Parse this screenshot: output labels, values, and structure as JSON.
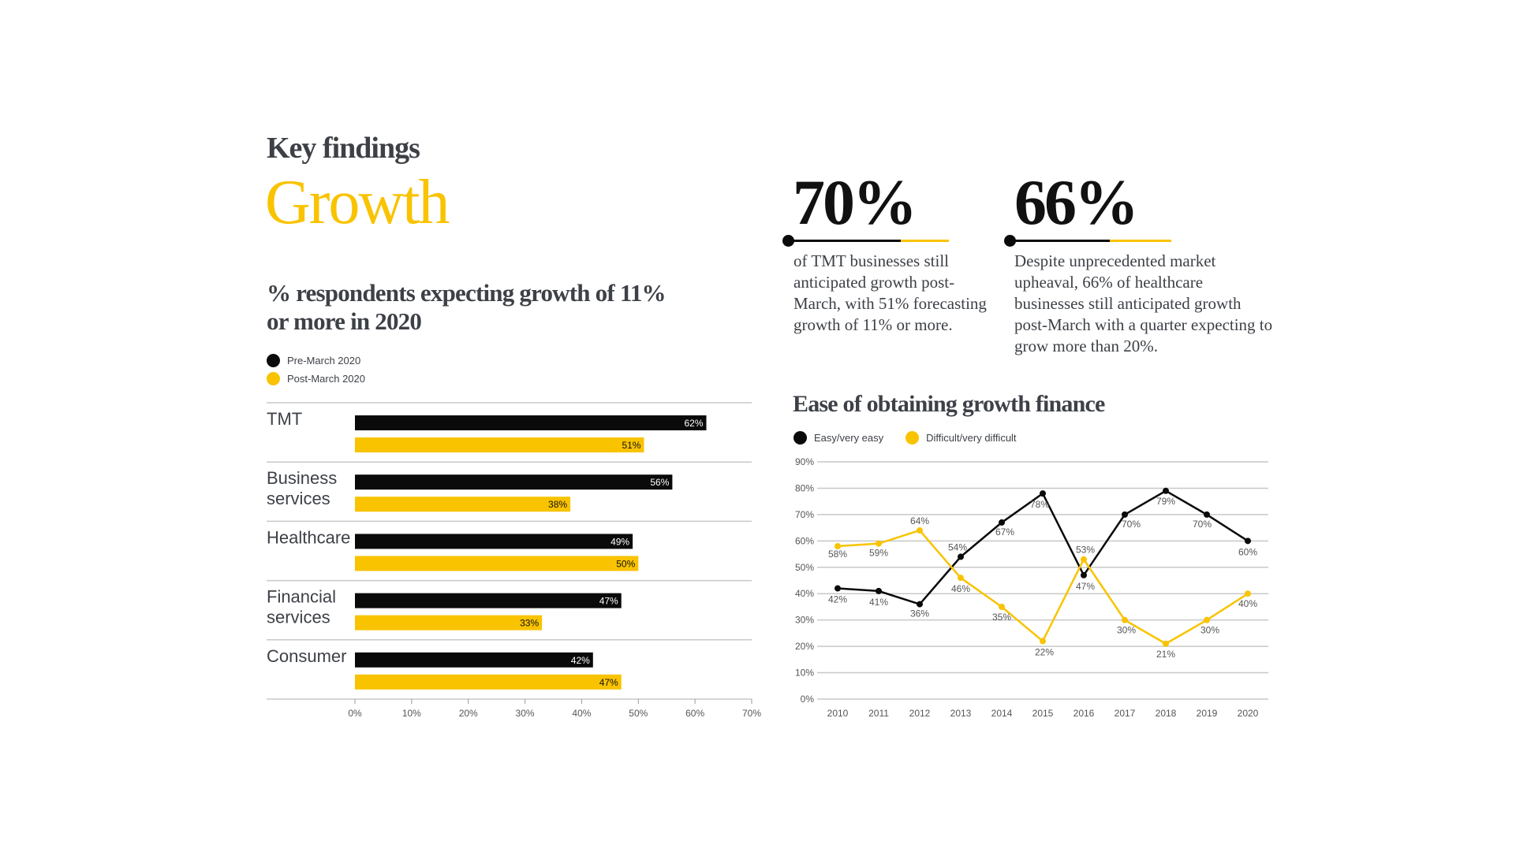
{
  "header": {
    "kicker": "Key findings",
    "headline": "Growth"
  },
  "colors": {
    "black": "#0a0a0a",
    "yellow": "#f9c300",
    "text": "#3d4147",
    "grid": "#c8c8c8"
  },
  "stats": [
    {
      "value": "70%",
      "text": "of TMT businesses still anticipated growth post-March, with 51% forecasting growth of 11% or more."
    },
    {
      "value": "66%",
      "text": "Despite unprecedented market upheaval, 66% of healthcare businesses still anticipated growth post-March with a quarter expecting to grow more than 20%."
    }
  ],
  "chart_data": [
    {
      "type": "bar",
      "orientation": "horizontal",
      "title": "% respondents expecting growth of 11% or more in 2020",
      "categories": [
        [
          "TMT"
        ],
        [
          "Business",
          "services"
        ],
        [
          "Healthcare"
        ],
        [
          "Financial",
          "services"
        ],
        [
          "Consumer"
        ]
      ],
      "series": [
        {
          "name": "Pre-March 2020",
          "color": "#0a0a0a",
          "values": [
            62,
            56,
            49,
            47,
            42
          ],
          "labels": [
            "62%",
            "56%",
            "49%",
            "47%",
            "42%"
          ]
        },
        {
          "name": "Post-March 2020",
          "color": "#f9c300",
          "values": [
            51,
            38,
            50,
            33,
            47
          ],
          "labels": [
            "51%",
            "38%",
            "50%",
            "33%",
            "47%"
          ]
        }
      ],
      "xlim": [
        0,
        70
      ],
      "xticks": [
        "0%",
        "10%",
        "20%",
        "30%",
        "40%",
        "50%",
        "60%",
        "70%"
      ],
      "legend": "top-left"
    },
    {
      "type": "line",
      "title": "Ease of obtaining growth finance",
      "x": [
        "2010",
        "2011",
        "2012",
        "2013",
        "2014",
        "2015",
        "2016",
        "2017",
        "2018",
        "2019",
        "2020"
      ],
      "series": [
        {
          "name": "Easy/very easy",
          "color": "#0a0a0a",
          "values": [
            42,
            41,
            36,
            54,
            67,
            78,
            47,
            70,
            79,
            70,
            60
          ]
        },
        {
          "name": "Difficult/very difficult",
          "color": "#f9c300",
          "values": [
            58,
            59,
            64,
            46,
            35,
            22,
            53,
            30,
            21,
            30,
            40
          ]
        }
      ],
      "ylim": [
        0,
        90
      ],
      "yticks": [
        "0%",
        "10%",
        "20%",
        "30%",
        "40%",
        "50%",
        "60%",
        "70%",
        "80%",
        "90%"
      ],
      "grid": true,
      "legend": "top-left"
    }
  ]
}
